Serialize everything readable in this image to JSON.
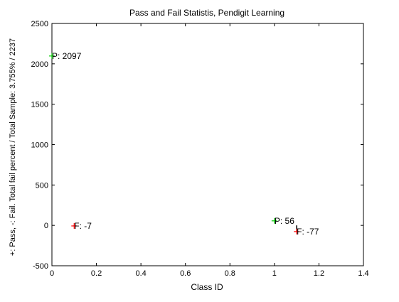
{
  "chart_data": {
    "type": "scatter",
    "title": "Pass and Fail Statistis, Pendigit Learning",
    "xlabel": "Class ID",
    "ylabel": "+: Pass, -: Fail. Total fail percent / Total Sample: 3.755% / 2237",
    "xlim": [
      0,
      1.4
    ],
    "ylim": [
      -500,
      2500
    ],
    "xticks": [
      0,
      0.2,
      0.4,
      0.6,
      0.8,
      1,
      1.2,
      1.4
    ],
    "xtick_labels": [
      "0",
      "0.2",
      "0.4",
      "0.6",
      "0.8",
      "1",
      "1.2",
      "1.4"
    ],
    "yticks": [
      -500,
      0,
      500,
      1000,
      1500,
      2000,
      2500
    ],
    "ytick_labels": [
      "-500",
      "0",
      "500",
      "1000",
      "1500",
      "2000",
      "2500"
    ],
    "grid": false,
    "series": [
      {
        "kind": "pass",
        "marker": "+",
        "color": "#00cc00",
        "points": [
          {
            "x": 0.0,
            "y": 2097
          },
          {
            "x": 1.0,
            "y": 56
          }
        ]
      },
      {
        "kind": "fail",
        "marker": "+",
        "color": "#ff0000",
        "points": [
          {
            "x": 0.1,
            "y": -7
          },
          {
            "x": 1.1,
            "y": -77
          }
        ]
      }
    ],
    "annotations": [
      {
        "text": "P: 2097",
        "x": 0.0,
        "y": 2097
      },
      {
        "text": "F: -7",
        "x": 0.1,
        "y": -7
      },
      {
        "text": "P: 56",
        "x": 1.0,
        "y": 56
      },
      {
        "text": "F: -77",
        "x": 1.1,
        "y": -77
      }
    ]
  },
  "colors": {
    "background": "#ffffff",
    "axes": "#000000",
    "pass_marker": "#00cc00",
    "fail_marker": "#ff0000",
    "fail_vertical": "#000000"
  }
}
